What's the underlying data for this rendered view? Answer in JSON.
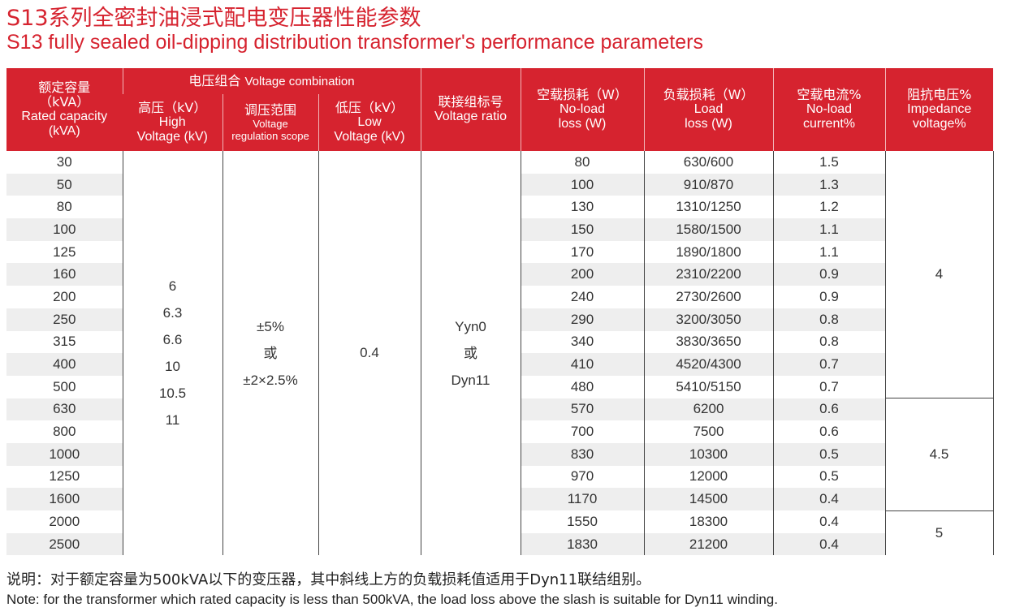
{
  "title_cn": "S13系列全密封油浸式配电变压器性能参数",
  "title_en": "S13 fully sealed oil-dipping distribution transformer's performance parameters",
  "header": {
    "capacity_cn": "额定容量",
    "capacity_unit": "（kVA）",
    "capacity_en": "Rated capacity",
    "capacity_en_unit": "(kVA)",
    "voltage_group_cn": "电压组合",
    "voltage_group_en": "Voltage combination",
    "hv_cn": "高压（kV）",
    "hv_en1": "High",
    "hv_en2": "Voltage (kV)",
    "reg_cn": "调压范围",
    "reg_en1": "Voltage",
    "reg_en2": "regulation scope",
    "lv_cn": "低压（kV）",
    "lv_en1": "Low",
    "lv_en2": "Voltage (kV)",
    "conn_cn": "联接组标号",
    "conn_en": "Voltage ratio",
    "noload_cn": "空载损耗（W）",
    "noload_en1": "No-load",
    "noload_en2": "loss (W)",
    "load_cn": "负载损耗（W）",
    "load_en1": "Load",
    "load_en2": "loss (W)",
    "current_cn": "空载电流%",
    "current_en1": "No-load",
    "current_en2": "current%",
    "imp_cn": "阻抗电压%",
    "imp_en1": "Impedance",
    "imp_en2": "voltage%"
  },
  "merged": {
    "hv_values": [
      "6",
      "6.3",
      "6.6",
      "10",
      "10.5",
      "11"
    ],
    "reg_values": [
      "±5%",
      "或",
      "±2×2.5%"
    ],
    "lv_value": "0.4",
    "conn_values": [
      "Yyn0",
      "或",
      "Dyn11"
    ],
    "impedance": [
      "4",
      "4.5",
      "5"
    ]
  },
  "rows": [
    {
      "capacity": "30",
      "noload": "80",
      "load": "630/600",
      "current": "1.5"
    },
    {
      "capacity": "50",
      "noload": "100",
      "load": "910/870",
      "current": "1.3"
    },
    {
      "capacity": "80",
      "noload": "130",
      "load": "1310/1250",
      "current": "1.2"
    },
    {
      "capacity": "100",
      "noload": "150",
      "load": "1580/1500",
      "current": "1.1"
    },
    {
      "capacity": "125",
      "noload": "170",
      "load": "1890/1800",
      "current": "1.1"
    },
    {
      "capacity": "160",
      "noload": "200",
      "load": "2310/2200",
      "current": "0.9"
    },
    {
      "capacity": "200",
      "noload": "240",
      "load": "2730/2600",
      "current": "0.9"
    },
    {
      "capacity": "250",
      "noload": "290",
      "load": "3200/3050",
      "current": "0.8"
    },
    {
      "capacity": "315",
      "noload": "340",
      "load": "3830/3650",
      "current": "0.8"
    },
    {
      "capacity": "400",
      "noload": "410",
      "load": "4520/4300",
      "current": "0.7"
    },
    {
      "capacity": "500",
      "noload": "480",
      "load": "5410/5150",
      "current": "0.7"
    },
    {
      "capacity": "630",
      "noload": "570",
      "load": "6200",
      "current": "0.6"
    },
    {
      "capacity": "800",
      "noload": "700",
      "load": "7500",
      "current": "0.6"
    },
    {
      "capacity": "1000",
      "noload": "830",
      "load": "10300",
      "current": "0.5"
    },
    {
      "capacity": "1250",
      "noload": "970",
      "load": "12000",
      "current": "0.5"
    },
    {
      "capacity": "1600",
      "noload": "1170",
      "load": "14500",
      "current": "0.4"
    },
    {
      "capacity": "2000",
      "noload": "1550",
      "load": "18300",
      "current": "0.4"
    },
    {
      "capacity": "2500",
      "noload": "1830",
      "load": "21200",
      "current": "0.4"
    }
  ],
  "note_cn": "说明：对于额定容量为500kVA以下的变压器，其中斜线上方的负载损耗值适用于Dyn11联结组别。",
  "note_en": "Note: for the transformer which rated capacity is less than 500kVA, the load loss above the slash is suitable for Dyn11 winding.",
  "colors": {
    "accent": "#d6232f",
    "stripe": "#eeeeee"
  }
}
